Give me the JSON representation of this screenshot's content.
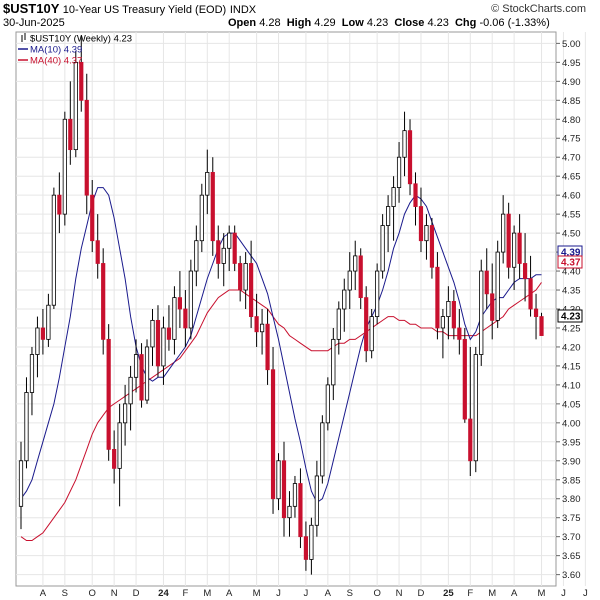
{
  "header": {
    "symbol": "$UST10Y",
    "description": "10-Year US Treasury Yield (EOD)",
    "exchange": "INDX",
    "date": "30-Jun-2025",
    "open_label": "Open",
    "open": "4.28",
    "high_label": "High",
    "high": "4.29",
    "low_label": "Low",
    "low": "4.23",
    "close_label": "Close",
    "close": "4.23",
    "chg_label": "Chg",
    "chg": "-0.06 (-1.33%)",
    "brand": "© StockCharts.com"
  },
  "legend": [
    {
      "label": "$UST10Y (Weekly) 4.23",
      "color": "#000000"
    },
    {
      "label": "MA(10) 4.39",
      "color": "#1a1a8c"
    },
    {
      "label": "MA(40) 4.37",
      "color": "#c8102e"
    }
  ],
  "price_tags": [
    {
      "label": "4.39",
      "value": 4.39,
      "color": "#1a1a8c"
    },
    {
      "label": "4.37",
      "value": 4.37,
      "color": "#c8102e"
    },
    {
      "label": "4.23",
      "value": 4.23,
      "color": "#000000"
    }
  ],
  "colors": {
    "up": "#ffffff",
    "down": "#c8102e",
    "outline": "#000000",
    "ma10": "#1a1a8c",
    "ma40": "#c8102e",
    "grid": "#e6e6e6"
  },
  "chart_data": {
    "type": "candlestick",
    "title": "$UST10Y 10-Year US Treasury Yield (EOD) INDX",
    "period": "Weekly",
    "ylim": [
      3.57,
      5.03
    ],
    "yticks": [
      3.6,
      3.65,
      3.7,
      3.75,
      3.8,
      3.85,
      3.9,
      3.95,
      4.0,
      4.05,
      4.1,
      4.15,
      4.2,
      4.25,
      4.3,
      4.35,
      4.4,
      4.45,
      4.5,
      4.55,
      4.6,
      4.65,
      4.7,
      4.75,
      4.8,
      4.85,
      4.9,
      4.95,
      5.0
    ],
    "x_labels": [
      {
        "label": "A",
        "index": 4
      },
      {
        "label": "S",
        "index": 8
      },
      {
        "label": "O",
        "index": 13
      },
      {
        "label": "N",
        "index": 17
      },
      {
        "label": "D",
        "index": 21
      },
      {
        "label": "24",
        "index": 26,
        "bold": true
      },
      {
        "label": "F",
        "index": 30
      },
      {
        "label": "M",
        "index": 34
      },
      {
        "label": "A",
        "index": 38
      },
      {
        "label": "M",
        "index": 43
      },
      {
        "label": "J",
        "index": 47
      },
      {
        "label": "J",
        "index": 52
      },
      {
        "label": "A",
        "index": 56
      },
      {
        "label": "S",
        "index": 60
      },
      {
        "label": "O",
        "index": 65
      },
      {
        "label": "N",
        "index": 69
      },
      {
        "label": "D",
        "index": 73
      },
      {
        "label": "25",
        "index": 78,
        "bold": true
      },
      {
        "label": "F",
        "index": 82
      },
      {
        "label": "M",
        "index": 86
      },
      {
        "label": "A",
        "index": 90
      },
      {
        "label": "M",
        "index": 95
      },
      {
        "label": "J",
        "index": 99
      },
      {
        "label": "J",
        "index": 103
      }
    ],
    "candles": [
      [
        3.78,
        3.95,
        3.72,
        3.9
      ],
      [
        3.9,
        4.12,
        3.88,
        4.08
      ],
      [
        4.08,
        4.2,
        4.02,
        4.18
      ],
      [
        4.18,
        4.28,
        4.12,
        4.25
      ],
      [
        4.25,
        4.3,
        4.18,
        4.22
      ],
      [
        4.22,
        4.34,
        4.2,
        4.31
      ],
      [
        4.31,
        4.62,
        4.3,
        4.6
      ],
      [
        4.6,
        4.66,
        4.5,
        4.55
      ],
      [
        4.55,
        4.82,
        4.52,
        4.8
      ],
      [
        4.8,
        4.9,
        4.68,
        4.72
      ],
      [
        4.72,
        4.98,
        4.7,
        4.95
      ],
      [
        4.95,
        5.02,
        4.82,
        4.85
      ],
      [
        4.85,
        4.92,
        4.55,
        4.6
      ],
      [
        4.6,
        4.64,
        4.45,
        4.48
      ],
      [
        4.48,
        4.55,
        4.38,
        4.42
      ],
      [
        4.42,
        4.46,
        4.18,
        4.22
      ],
      [
        4.22,
        4.26,
        3.9,
        3.93
      ],
      [
        3.93,
        3.98,
        3.84,
        3.88
      ],
      [
        3.88,
        4.05,
        3.78,
        4.0
      ],
      [
        4.0,
        4.1,
        3.94,
        4.05
      ],
      [
        4.05,
        4.15,
        3.98,
        4.12
      ],
      [
        4.12,
        4.22,
        4.08,
        4.18
      ],
      [
        4.18,
        4.21,
        4.04,
        4.06
      ],
      [
        4.06,
        4.22,
        4.05,
        4.2
      ],
      [
        4.2,
        4.3,
        4.15,
        4.27
      ],
      [
        4.27,
        4.31,
        4.12,
        4.15
      ],
      [
        4.15,
        4.28,
        4.1,
        4.25
      ],
      [
        4.25,
        4.31,
        4.19,
        4.22
      ],
      [
        4.22,
        4.36,
        4.18,
        4.33
      ],
      [
        4.33,
        4.4,
        4.25,
        4.3
      ],
      [
        4.3,
        4.35,
        4.2,
        4.25
      ],
      [
        4.25,
        4.43,
        4.22,
        4.4
      ],
      [
        4.4,
        4.52,
        4.36,
        4.48
      ],
      [
        4.48,
        4.63,
        4.45,
        4.6
      ],
      [
        4.6,
        4.72,
        4.55,
        4.66
      ],
      [
        4.66,
        4.7,
        4.44,
        4.48
      ],
      [
        4.48,
        4.52,
        4.38,
        4.42
      ],
      [
        4.42,
        4.5,
        4.36,
        4.46
      ],
      [
        4.46,
        4.52,
        4.4,
        4.5
      ],
      [
        4.5,
        4.52,
        4.4,
        4.42
      ],
      [
        4.42,
        4.44,
        4.32,
        4.35
      ],
      [
        4.35,
        4.45,
        4.3,
        4.42
      ],
      [
        4.42,
        4.48,
        4.25,
        4.28
      ],
      [
        4.28,
        4.34,
        4.2,
        4.24
      ],
      [
        4.24,
        4.3,
        4.18,
        4.26
      ],
      [
        4.26,
        4.3,
        4.1,
        4.14
      ],
      [
        4.14,
        4.2,
        3.76,
        3.8
      ],
      [
        3.8,
        3.92,
        3.77,
        3.9
      ],
      [
        3.9,
        3.95,
        3.7,
        3.75
      ],
      [
        3.75,
        3.82,
        3.7,
        3.78
      ],
      [
        3.78,
        3.86,
        3.75,
        3.84
      ],
      [
        3.84,
        3.88,
        3.67,
        3.7
      ],
      [
        3.7,
        3.74,
        3.61,
        3.64
      ],
      [
        3.64,
        3.75,
        3.6,
        3.73
      ],
      [
        3.73,
        3.9,
        3.7,
        3.86
      ],
      [
        3.86,
        4.02,
        3.84,
        4.0
      ],
      [
        4.0,
        4.12,
        3.98,
        4.1
      ],
      [
        4.1,
        4.25,
        4.06,
        4.22
      ],
      [
        4.22,
        4.32,
        4.18,
        4.3
      ],
      [
        4.3,
        4.38,
        4.24,
        4.35
      ],
      [
        4.35,
        4.45,
        4.3,
        4.4
      ],
      [
        4.4,
        4.48,
        4.35,
        4.44
      ],
      [
        4.44,
        4.46,
        4.3,
        4.33
      ],
      [
        4.33,
        4.36,
        4.16,
        4.19
      ],
      [
        4.19,
        4.3,
        4.17,
        4.28
      ],
      [
        4.28,
        4.42,
        4.26,
        4.4
      ],
      [
        4.4,
        4.55,
        4.38,
        4.52
      ],
      [
        4.52,
        4.6,
        4.45,
        4.57
      ],
      [
        4.57,
        4.65,
        4.48,
        4.62
      ],
      [
        4.62,
        4.74,
        4.58,
        4.7
      ],
      [
        4.7,
        4.82,
        4.65,
        4.77
      ],
      [
        4.77,
        4.8,
        4.6,
        4.63
      ],
      [
        4.63,
        4.66,
        4.52,
        4.57
      ],
      [
        4.57,
        4.62,
        4.45,
        4.48
      ],
      [
        4.48,
        4.55,
        4.43,
        4.52
      ],
      [
        4.52,
        4.54,
        4.38,
        4.41
      ],
      [
        4.41,
        4.45,
        4.22,
        4.25
      ],
      [
        4.25,
        4.3,
        4.17,
        4.28
      ],
      [
        4.28,
        4.36,
        4.22,
        4.32
      ],
      [
        4.32,
        4.35,
        4.22,
        4.25
      ],
      [
        4.25,
        4.3,
        4.18,
        4.22
      ],
      [
        4.22,
        4.25,
        4.0,
        4.01
      ],
      [
        4.01,
        4.2,
        3.86,
        3.9
      ],
      [
        3.9,
        4.2,
        3.87,
        4.18
      ],
      [
        4.18,
        4.43,
        4.15,
        4.4
      ],
      [
        4.4,
        4.46,
        4.3,
        4.34
      ],
      [
        4.34,
        4.42,
        4.22,
        4.27
      ],
      [
        4.27,
        4.48,
        4.25,
        4.45
      ],
      [
        4.45,
        4.6,
        4.42,
        4.55
      ],
      [
        4.55,
        4.58,
        4.38,
        4.41
      ],
      [
        4.41,
        4.52,
        4.35,
        4.5
      ],
      [
        4.5,
        4.55,
        4.38,
        4.42
      ],
      [
        4.42,
        4.5,
        4.32,
        4.38
      ],
      [
        4.38,
        4.44,
        4.28,
        4.3
      ],
      [
        4.3,
        4.34,
        4.22,
        4.28
      ],
      [
        4.28,
        4.29,
        4.23,
        4.23
      ]
    ],
    "ma10": [
      3.8,
      3.82,
      3.85,
      3.9,
      3.95,
      4.0,
      4.05,
      4.12,
      4.2,
      4.28,
      4.38,
      4.46,
      4.52,
      4.58,
      4.62,
      4.62,
      4.6,
      4.54,
      4.46,
      4.38,
      4.28,
      4.2,
      4.15,
      4.12,
      4.11,
      4.12,
      4.12,
      4.14,
      4.16,
      4.18,
      4.2,
      4.23,
      4.28,
      4.33,
      4.38,
      4.42,
      4.46,
      4.49,
      4.5,
      4.5,
      4.48,
      4.46,
      4.44,
      4.42,
      4.38,
      4.34,
      4.28,
      4.22,
      4.15,
      4.08,
      4.01,
      3.95,
      3.88,
      3.82,
      3.79,
      3.8,
      3.84,
      3.9,
      3.96,
      4.02,
      4.08,
      4.14,
      4.2,
      4.25,
      4.28,
      4.31,
      4.35,
      4.4,
      4.46,
      4.5,
      4.55,
      4.58,
      4.6,
      4.59,
      4.57,
      4.53,
      4.49,
      4.45,
      4.41,
      4.37,
      4.32,
      4.26,
      4.22,
      4.24,
      4.28,
      4.3,
      4.32,
      4.33,
      4.33,
      4.35,
      4.37,
      4.38,
      4.38,
      4.38,
      4.39,
      4.39
    ],
    "ma40": [
      3.7,
      3.69,
      3.69,
      3.7,
      3.71,
      3.73,
      3.75,
      3.77,
      3.79,
      3.82,
      3.85,
      3.89,
      3.93,
      3.97,
      4.0,
      4.02,
      4.04,
      4.05,
      4.06,
      4.07,
      4.08,
      4.09,
      4.1,
      4.11,
      4.12,
      4.13,
      4.14,
      4.15,
      4.16,
      4.17,
      4.19,
      4.21,
      4.23,
      4.26,
      4.29,
      4.31,
      4.33,
      4.34,
      4.35,
      4.35,
      4.35,
      4.34,
      4.33,
      4.32,
      4.31,
      4.3,
      4.28,
      4.26,
      4.25,
      4.23,
      4.22,
      4.21,
      4.2,
      4.19,
      4.19,
      4.19,
      4.19,
      4.2,
      4.21,
      4.21,
      4.22,
      4.22,
      4.23,
      4.24,
      4.25,
      4.26,
      4.27,
      4.28,
      4.28,
      4.27,
      4.27,
      4.26,
      4.26,
      4.25,
      4.25,
      4.25,
      4.24,
      4.24,
      4.23,
      4.23,
      4.23,
      4.23,
      4.23,
      4.23,
      4.24,
      4.25,
      4.26,
      4.27,
      4.28,
      4.3,
      4.31,
      4.32,
      4.33,
      4.34,
      4.35,
      4.37
    ]
  }
}
